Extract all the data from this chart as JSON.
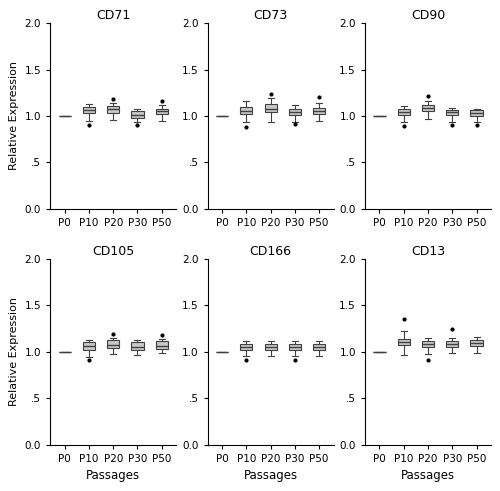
{
  "titles": [
    "CD71",
    "CD73",
    "CD90",
    "CD105",
    "CD166",
    "CD13"
  ],
  "passages": [
    "P0",
    "P10",
    "P20",
    "P30",
    "P50"
  ],
  "ylim": [
    0.0,
    2.0
  ],
  "yticks": [
    0.0,
    0.5,
    1.0,
    1.5,
    2.0
  ],
  "yticklabels": [
    "0.0",
    ".5",
    "1.0",
    "1.5",
    "2.0"
  ],
  "box_color": "#c8c8c8",
  "median_color": "#404040",
  "whisker_color": "#404040",
  "flier_color": "black",
  "row_ylabel": "Relative Expression",
  "bottom_xlabel": "Passages",
  "figsize": [
    5.0,
    4.91
  ],
  "dpi": 100,
  "box_data": {
    "CD71": {
      "P0": {
        "med": 1.0,
        "q1": 1.0,
        "q3": 1.0,
        "whislo": 1.0,
        "whishi": 1.0,
        "fliers": []
      },
      "P10": {
        "med": 1.06,
        "q1": 1.03,
        "q3": 1.1,
        "whislo": 0.95,
        "whishi": 1.13,
        "fliers": [
          0.9
        ]
      },
      "P20": {
        "med": 1.07,
        "q1": 1.03,
        "q3": 1.11,
        "whislo": 0.96,
        "whishi": 1.14,
        "fliers": [
          1.18
        ]
      },
      "P30": {
        "med": 1.01,
        "q1": 0.98,
        "q3": 1.05,
        "whislo": 0.93,
        "whishi": 1.08,
        "fliers": [
          0.9
        ]
      },
      "P50": {
        "med": 1.05,
        "q1": 1.02,
        "q3": 1.08,
        "whislo": 0.95,
        "whishi": 1.12,
        "fliers": [
          1.16
        ]
      }
    },
    "CD73": {
      "P0": {
        "med": 1.0,
        "q1": 1.0,
        "q3": 1.0,
        "whislo": 1.0,
        "whishi": 1.0,
        "fliers": []
      },
      "P10": {
        "med": 1.05,
        "q1": 1.02,
        "q3": 1.1,
        "whislo": 0.93,
        "whishi": 1.16,
        "fliers": [
          0.88
        ]
      },
      "P20": {
        "med": 1.08,
        "q1": 1.04,
        "q3": 1.13,
        "whislo": 0.94,
        "whishi": 1.19,
        "fliers": [
          1.24
        ]
      },
      "P30": {
        "med": 1.04,
        "q1": 1.01,
        "q3": 1.08,
        "whislo": 0.94,
        "whishi": 1.12,
        "fliers": [
          0.91
        ]
      },
      "P50": {
        "med": 1.05,
        "q1": 1.02,
        "q3": 1.09,
        "whislo": 0.95,
        "whishi": 1.14,
        "fliers": [
          1.2
        ]
      }
    },
    "CD90": {
      "P0": {
        "med": 1.0,
        "q1": 1.0,
        "q3": 1.0,
        "whislo": 1.0,
        "whishi": 1.0,
        "fliers": []
      },
      "P10": {
        "med": 1.04,
        "q1": 1.01,
        "q3": 1.08,
        "whislo": 0.93,
        "whishi": 1.11,
        "fliers": [
          0.89
        ]
      },
      "P20": {
        "med": 1.09,
        "q1": 1.05,
        "q3": 1.12,
        "whislo": 0.97,
        "whishi": 1.16,
        "fliers": [
          1.21
        ]
      },
      "P30": {
        "med": 1.04,
        "q1": 1.01,
        "q3": 1.06,
        "whislo": 0.93,
        "whishi": 1.09,
        "fliers": [
          0.9
        ]
      },
      "P50": {
        "med": 1.03,
        "q1": 1.0,
        "q3": 1.06,
        "whislo": 0.93,
        "whishi": 1.08,
        "fliers": [
          0.9
        ]
      }
    },
    "CD105": {
      "P0": {
        "med": 1.0,
        "q1": 1.0,
        "q3": 1.0,
        "whislo": 1.0,
        "whishi": 1.0,
        "fliers": []
      },
      "P10": {
        "med": 1.06,
        "q1": 1.02,
        "q3": 1.1,
        "whislo": 0.94,
        "whishi": 1.13,
        "fliers": [
          0.91
        ]
      },
      "P20": {
        "med": 1.07,
        "q1": 1.04,
        "q3": 1.12,
        "whislo": 0.97,
        "whishi": 1.15,
        "fliers": [
          1.19
        ]
      },
      "P30": {
        "med": 1.05,
        "q1": 1.02,
        "q3": 1.1,
        "whislo": 0.96,
        "whishi": 1.13,
        "fliers": []
      },
      "P50": {
        "med": 1.06,
        "q1": 1.03,
        "q3": 1.11,
        "whislo": 0.98,
        "whishi": 1.14,
        "fliers": [
          1.18
        ]
      }
    },
    "CD166": {
      "P0": {
        "med": 1.0,
        "q1": 1.0,
        "q3": 1.0,
        "whislo": 1.0,
        "whishi": 1.0,
        "fliers": []
      },
      "P10": {
        "med": 1.05,
        "q1": 1.02,
        "q3": 1.08,
        "whislo": 0.95,
        "whishi": 1.11,
        "fliers": [
          0.91
        ]
      },
      "P20": {
        "med": 1.05,
        "q1": 1.02,
        "q3": 1.08,
        "whislo": 0.95,
        "whishi": 1.11,
        "fliers": []
      },
      "P30": {
        "med": 1.05,
        "q1": 1.02,
        "q3": 1.08,
        "whislo": 0.95,
        "whishi": 1.11,
        "fliers": [
          0.91
        ]
      },
      "P50": {
        "med": 1.05,
        "q1": 1.02,
        "q3": 1.08,
        "whislo": 0.95,
        "whishi": 1.11,
        "fliers": []
      }
    },
    "CD13": {
      "P0": {
        "med": 1.0,
        "q1": 1.0,
        "q3": 1.0,
        "whislo": 1.0,
        "whishi": 1.0,
        "fliers": []
      },
      "P10": {
        "med": 1.1,
        "q1": 1.07,
        "q3": 1.14,
        "whislo": 0.96,
        "whishi": 1.22,
        "fliers": [
          1.35
        ]
      },
      "P20": {
        "med": 1.08,
        "q1": 1.05,
        "q3": 1.11,
        "whislo": 0.97,
        "whishi": 1.15,
        "fliers": [
          0.91
        ]
      },
      "P30": {
        "med": 1.08,
        "q1": 1.05,
        "q3": 1.11,
        "whislo": 0.98,
        "whishi": 1.15,
        "fliers": [
          1.24
        ]
      },
      "P50": {
        "med": 1.09,
        "q1": 1.06,
        "q3": 1.12,
        "whislo": 0.98,
        "whishi": 1.16,
        "fliers": []
      }
    }
  }
}
